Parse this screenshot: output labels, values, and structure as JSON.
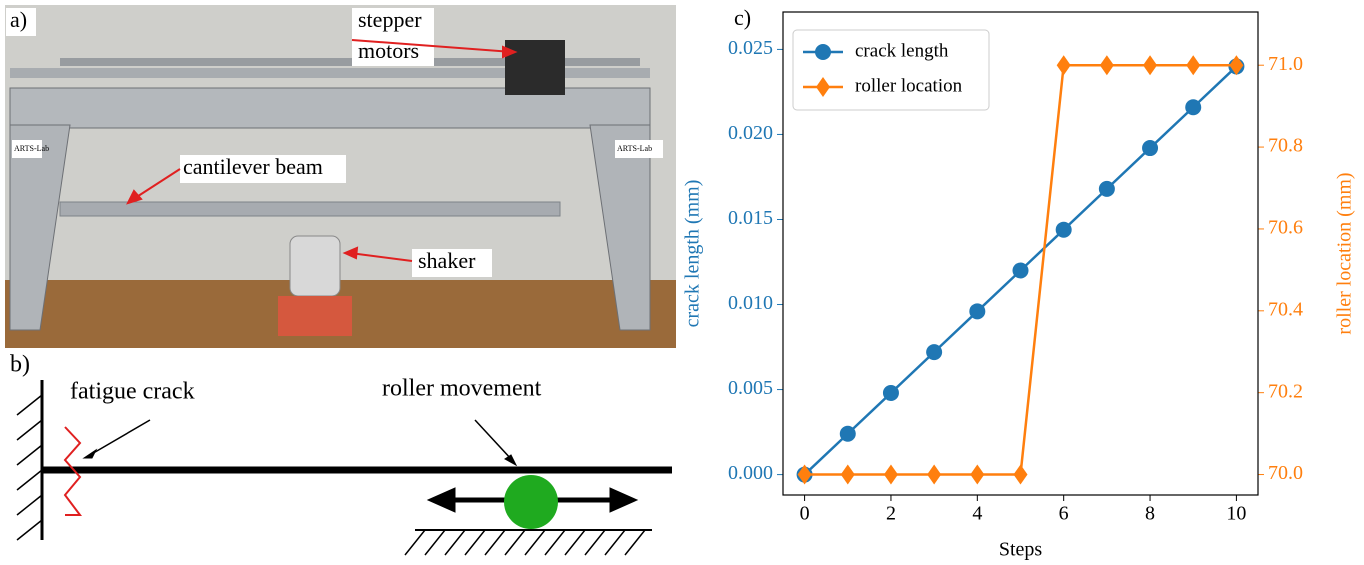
{
  "photo": {
    "label": "a)",
    "annotations": [
      {
        "lines": [
          "stepper",
          "motors"
        ]
      },
      {
        "lines": [
          "cantilever beam"
        ]
      },
      {
        "lines": [
          "shaker"
        ]
      }
    ],
    "logos": [
      "ARTS-Lab",
      "ARTS-Lab"
    ]
  },
  "diagram": {
    "label": "b)",
    "annotations": [
      "fatigue crack",
      "roller movement"
    ]
  },
  "chart_data": {
    "type": "line",
    "panel_label": "c)",
    "x_label": "Steps",
    "y_label": "crack length (mm)",
    "y2_label": "roller location (mm)",
    "x": [
      0,
      1,
      2,
      3,
      4,
      5,
      6,
      7,
      8,
      9,
      10
    ],
    "series": [
      {
        "name": "crack length",
        "color": "#1f77b4",
        "marker": "circle",
        "values": [
          0,
          0.0024,
          0.0048,
          0.0072,
          0.0096,
          0.012,
          0.0144,
          0.0168,
          0.0192,
          0.0216,
          0.024
        ]
      },
      {
        "name": "roller location",
        "color": "#ff7f0e",
        "marker": "diamond",
        "axis": "y2",
        "values": [
          70,
          70,
          70,
          70,
          70,
          70,
          71,
          71,
          71,
          71,
          71
        ]
      }
    ],
    "xlim": [
      -0.5,
      10.5
    ],
    "xticks": [
      0,
      2,
      4,
      6,
      8,
      10
    ],
    "ylim": [
      -0.0012,
      0.0272
    ],
    "yticks": [
      {
        "value": 0,
        "label": "0.000"
      },
      {
        "value": 0.005,
        "label": "0.005"
      },
      {
        "value": 0.01,
        "label": "0.010"
      },
      {
        "value": 0.015,
        "label": "0.015"
      },
      {
        "value": 0.02,
        "label": "0.020"
      },
      {
        "value": 0.025,
        "label": "0.025"
      }
    ],
    "y2lim": [
      69.95,
      71.13
    ],
    "y2ticks": [
      {
        "value": 70,
        "label": "70.0"
      },
      {
        "value": 70.2,
        "label": "70.2"
      },
      {
        "value": 70.4,
        "label": "70.4"
      },
      {
        "value": 70.6,
        "label": "70.6"
      },
      {
        "value": 70.8,
        "label": "70.8"
      },
      {
        "value": 71,
        "label": "71.0"
      }
    ],
    "legend": "upper left"
  }
}
